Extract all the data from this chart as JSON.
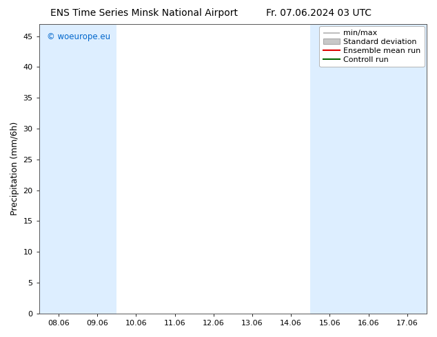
{
  "title_left": "ENS Time Series Minsk National Airport",
  "title_right": "Fr. 07.06.2024 03 UTC",
  "ylabel": "Precipitation (mm/6h)",
  "watermark": "© woeurope.eu",
  "watermark_color": "#0066cc",
  "xlim_start": 7.5,
  "xlim_end": 17.5,
  "ylim": [
    0,
    47
  ],
  "yticks": [
    0,
    5,
    10,
    15,
    20,
    25,
    30,
    35,
    40,
    45
  ],
  "xtick_labels": [
    "08.06",
    "09.06",
    "10.06",
    "11.06",
    "12.06",
    "13.06",
    "14.06",
    "15.06",
    "16.06",
    "17.06"
  ],
  "xtick_positions": [
    8,
    9,
    10,
    11,
    12,
    13,
    14,
    15,
    16,
    17
  ],
  "background_color": "#ffffff",
  "plot_bg_color": "#ffffff",
  "shaded_color": "#ddeeff",
  "shaded_bands": [
    [
      7.5,
      8.5
    ],
    [
      8.5,
      9.5
    ],
    [
      14.5,
      15.5
    ],
    [
      15.5,
      16.5
    ],
    [
      16.5,
      17.5
    ]
  ],
  "legend_items": [
    {
      "label": "min/max",
      "color": "#b0b0b0",
      "style": "line_with_bar"
    },
    {
      "label": "Standard deviation",
      "color": "#c8c8c8",
      "style": "band"
    },
    {
      "label": "Ensemble mean run",
      "color": "#dd0000",
      "style": "line"
    },
    {
      "label": "Controll run",
      "color": "#006600",
      "style": "line"
    }
  ],
  "title_fontsize": 10,
  "tick_fontsize": 8,
  "ylabel_fontsize": 9,
  "legend_fontsize": 8
}
